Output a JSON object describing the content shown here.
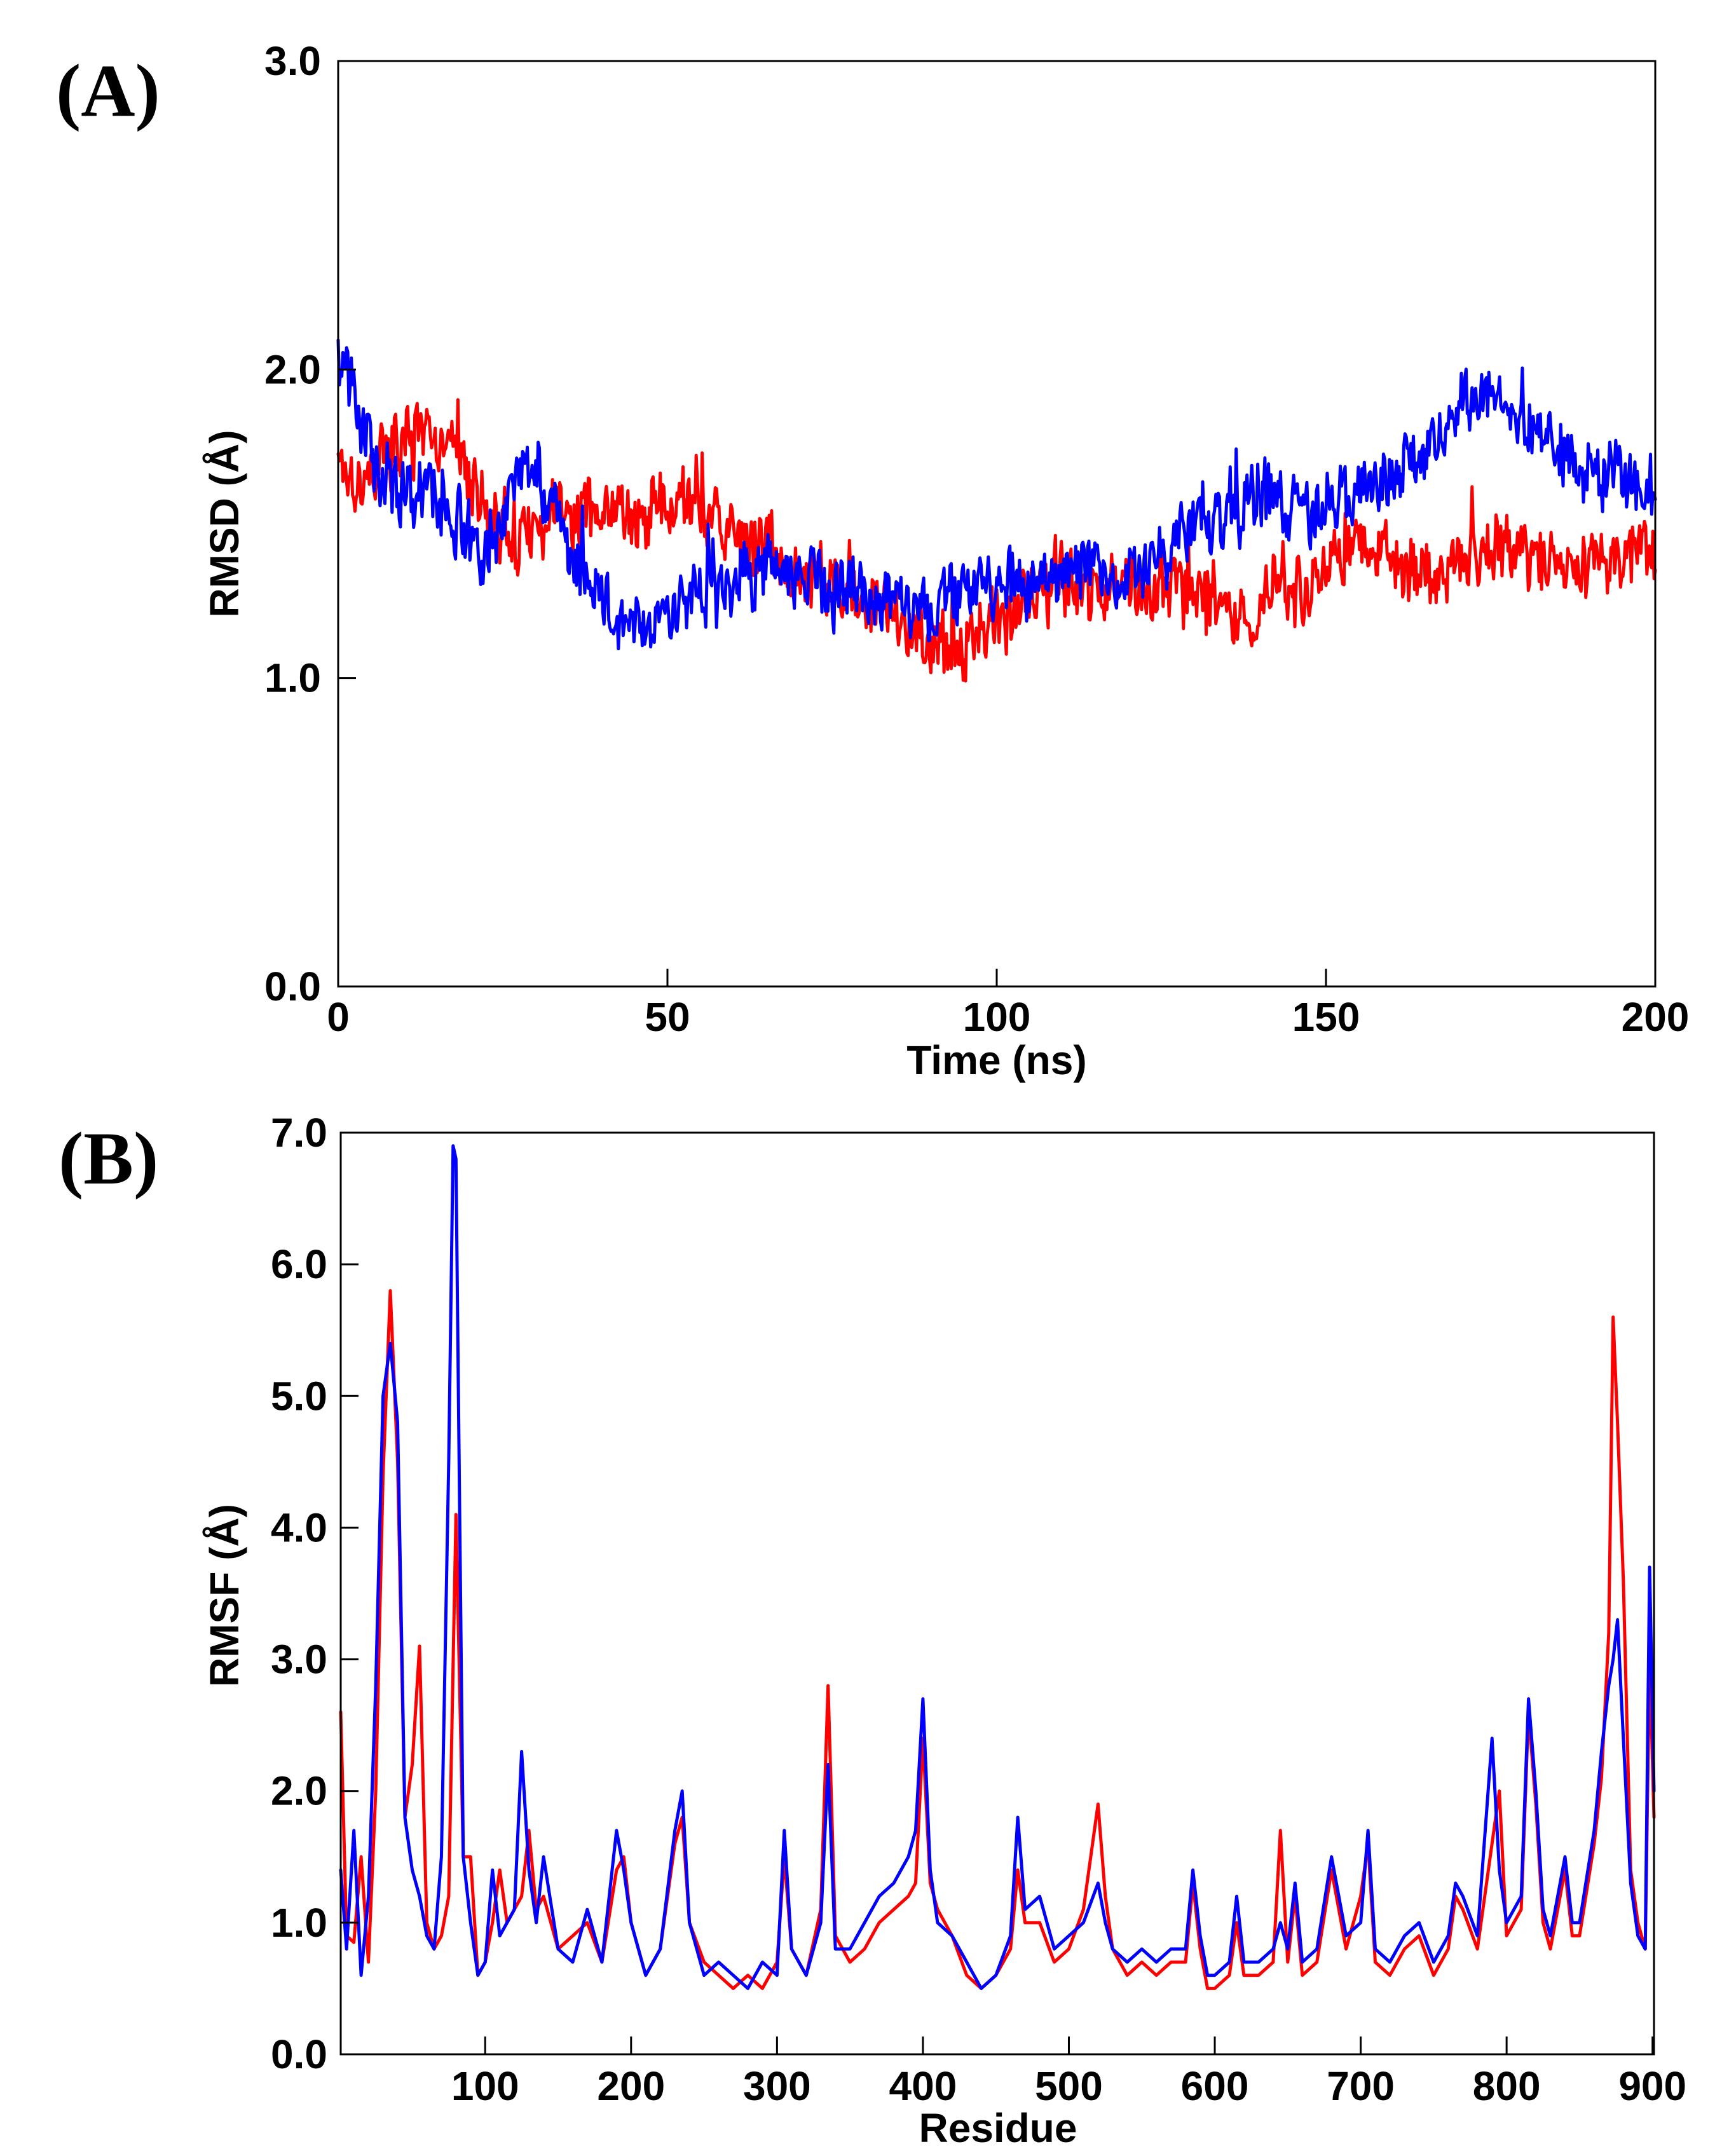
{
  "chart_data": [
    {
      "panel_label": "(A)",
      "type": "line",
      "title": "",
      "xlabel": "Time (ns)",
      "ylabel": "RMSD (Å)",
      "xlim": [
        0,
        200
      ],
      "ylim": [
        0,
        3
      ],
      "xticks": [
        0,
        50,
        100,
        150,
        200
      ],
      "xtick_labels": [
        "0",
        "50",
        "100",
        "150",
        "200"
      ],
      "yticks": [
        0,
        1,
        2,
        3
      ],
      "ytick_labels": [
        "0.0",
        "1.0",
        "2.0",
        "3.0"
      ],
      "grid": false,
      "noise_amplitude": 0.09,
      "series": [
        {
          "name": "red",
          "color": "#ff0000",
          "x": [
            0,
            1,
            3,
            6,
            10,
            14,
            18,
            22,
            26,
            30,
            34,
            38,
            42,
            46,
            50,
            54,
            58,
            62,
            66,
            70,
            74,
            78,
            82,
            86,
            90,
            94,
            98,
            102,
            106,
            110,
            114,
            118,
            122,
            126,
            130,
            134,
            138,
            142,
            146,
            150,
            154,
            158,
            162,
            166,
            170,
            174,
            178,
            182,
            186,
            190,
            194,
            198,
            200
          ],
          "values": [
            1.75,
            1.7,
            1.65,
            1.7,
            1.78,
            1.75,
            1.72,
            1.55,
            1.45,
            1.5,
            1.52,
            1.55,
            1.55,
            1.5,
            1.62,
            1.55,
            1.48,
            1.45,
            1.42,
            1.35,
            1.3,
            1.28,
            1.22,
            1.18,
            1.12,
            1.1,
            1.15,
            1.2,
            1.28,
            1.3,
            1.25,
            1.28,
            1.32,
            1.3,
            1.28,
            1.25,
            1.2,
            1.3,
            1.28,
            1.35,
            1.45,
            1.4,
            1.35,
            1.33,
            1.38,
            1.4,
            1.42,
            1.4,
            1.38,
            1.35,
            1.38,
            1.4,
            1.38
          ]
        },
        {
          "name": "blue",
          "color": "#0000ff",
          "x": [
            0,
            1,
            3,
            6,
            10,
            14,
            18,
            22,
            26,
            30,
            34,
            38,
            42,
            46,
            50,
            54,
            58,
            62,
            66,
            70,
            74,
            78,
            82,
            86,
            90,
            94,
            98,
            102,
            106,
            110,
            114,
            118,
            122,
            126,
            130,
            134,
            138,
            142,
            146,
            150,
            154,
            158,
            162,
            166,
            170,
            174,
            178,
            182,
            186,
            190,
            194,
            198,
            200
          ],
          "values": [
            2.1,
            2.0,
            1.85,
            1.7,
            1.62,
            1.58,
            1.5,
            1.4,
            1.65,
            1.68,
            1.45,
            1.3,
            1.2,
            1.22,
            1.2,
            1.28,
            1.33,
            1.32,
            1.35,
            1.35,
            1.3,
            1.28,
            1.25,
            1.25,
            1.2,
            1.28,
            1.3,
            1.32,
            1.3,
            1.35,
            1.38,
            1.3,
            1.35,
            1.42,
            1.5,
            1.52,
            1.55,
            1.62,
            1.55,
            1.55,
            1.6,
            1.62,
            1.68,
            1.75,
            1.88,
            1.92,
            1.8,
            1.85,
            1.75,
            1.68,
            1.65,
            1.6,
            1.62
          ]
        }
      ]
    },
    {
      "panel_label": "(B)",
      "type": "line",
      "title": "",
      "xlabel": "Residue",
      "ylabel": "RMSF (Å)",
      "xlim": [
        1,
        901
      ],
      "ylim": [
        0,
        7
      ],
      "xticks": [
        100,
        200,
        300,
        400,
        500,
        600,
        700,
        800,
        900
      ],
      "xtick_labels": [
        "100",
        "200",
        "300",
        "400",
        "500",
        "600",
        "700",
        "800",
        "900"
      ],
      "yticks": [
        0,
        1,
        2,
        3,
        4,
        5,
        6,
        7
      ],
      "ytick_labels": [
        "0.0",
        "1.0",
        "2.0",
        "3.0",
        "4.0",
        "5.0",
        "6.0",
        "7.0"
      ],
      "grid": false,
      "series": [
        {
          "name": "red",
          "color": "#ff0000",
          "x": [
            1,
            5,
            10,
            15,
            20,
            25,
            30,
            35,
            40,
            45,
            50,
            55,
            60,
            65,
            70,
            75,
            80,
            85,
            90,
            95,
            100,
            105,
            110,
            115,
            120,
            125,
            130,
            135,
            140,
            150,
            160,
            170,
            180,
            190,
            195,
            200,
            210,
            220,
            230,
            235,
            240,
            250,
            260,
            270,
            280,
            290,
            300,
            305,
            310,
            320,
            330,
            335,
            340,
            350,
            360,
            370,
            380,
            390,
            395,
            400,
            405,
            410,
            420,
            430,
            440,
            450,
            460,
            465,
            470,
            480,
            490,
            500,
            510,
            520,
            525,
            530,
            540,
            550,
            560,
            570,
            580,
            585,
            590,
            595,
            600,
            610,
            615,
            620,
            630,
            640,
            645,
            650,
            655,
            660,
            670,
            680,
            685,
            690,
            700,
            705,
            710,
            720,
            730,
            740,
            750,
            760,
            765,
            770,
            780,
            790,
            795,
            800,
            810,
            815,
            820,
            825,
            830,
            840,
            845,
            850,
            860,
            865,
            870,
            873,
            876,
            880,
            885,
            890,
            895,
            898,
            901
          ],
          "values": [
            2.6,
            0.9,
            0.85,
            1.5,
            0.7,
            2.0,
            4.4,
            5.8,
            4.5,
            1.8,
            2.2,
            3.1,
            1.0,
            0.8,
            0.9,
            1.2,
            4.1,
            1.5,
            1.5,
            0.6,
            0.7,
            1.0,
            1.4,
            1.0,
            1.1,
            1.2,
            1.7,
            1.1,
            1.2,
            0.8,
            0.9,
            1.0,
            0.7,
            1.4,
            1.5,
            1.0,
            0.6,
            0.8,
            1.6,
            1.8,
            1.0,
            0.7,
            0.6,
            0.5,
            0.6,
            0.5,
            0.7,
            1.5,
            0.8,
            0.6,
            1.1,
            2.8,
            0.9,
            0.7,
            0.8,
            1.0,
            1.1,
            1.2,
            1.3,
            2.4,
            1.3,
            1.1,
            0.9,
            0.6,
            0.5,
            0.6,
            0.8,
            1.4,
            1.0,
            1.0,
            0.7,
            0.8,
            1.1,
            1.9,
            1.2,
            0.8,
            0.6,
            0.7,
            0.6,
            0.7,
            0.7,
            1.3,
            0.8,
            0.5,
            0.5,
            0.6,
            1.0,
            0.6,
            0.6,
            0.7,
            1.7,
            0.7,
            1.2,
            0.6,
            0.7,
            1.4,
            1.1,
            0.8,
            1.2,
            1.6,
            0.7,
            0.6,
            0.8,
            0.9,
            0.6,
            0.8,
            1.2,
            1.1,
            0.8,
            1.6,
            2.0,
            0.9,
            1.1,
            2.6,
            1.9,
            1.0,
            0.8,
            1.4,
            0.9,
            0.9,
            1.6,
            2.1,
            3.2,
            5.6,
            4.8,
            3.6,
            1.4,
            1.0,
            0.8,
            3.0,
            1.8
          ]
        },
        {
          "name": "blue",
          "color": "#0000ff",
          "x": [
            1,
            5,
            10,
            15,
            20,
            25,
            30,
            35,
            40,
            45,
            50,
            55,
            60,
            65,
            70,
            75,
            78,
            80,
            85,
            90,
            95,
            100,
            105,
            110,
            115,
            120,
            125,
            130,
            135,
            140,
            150,
            160,
            170,
            180,
            190,
            195,
            200,
            210,
            220,
            230,
            235,
            240,
            250,
            260,
            270,
            280,
            290,
            300,
            305,
            310,
            320,
            330,
            335,
            340,
            350,
            360,
            370,
            380,
            390,
            395,
            400,
            405,
            410,
            420,
            430,
            440,
            450,
            460,
            465,
            470,
            480,
            490,
            500,
            510,
            520,
            525,
            530,
            540,
            550,
            560,
            570,
            580,
            585,
            590,
            595,
            600,
            610,
            615,
            620,
            630,
            640,
            645,
            650,
            655,
            660,
            670,
            680,
            685,
            690,
            700,
            705,
            710,
            720,
            730,
            740,
            750,
            760,
            765,
            770,
            780,
            790,
            795,
            800,
            810,
            815,
            820,
            825,
            830,
            840,
            845,
            850,
            860,
            865,
            870,
            873,
            876,
            880,
            885,
            890,
            895,
            898,
            901
          ],
          "values": [
            1.4,
            0.8,
            1.7,
            0.6,
            1.2,
            2.8,
            5.0,
            5.4,
            4.8,
            1.8,
            1.4,
            1.2,
            0.9,
            0.8,
            1.5,
            4.5,
            6.9,
            6.8,
            1.5,
            1.0,
            0.6,
            0.7,
            1.4,
            0.9,
            1.0,
            1.1,
            2.3,
            1.4,
            1.0,
            1.5,
            0.8,
            0.7,
            1.1,
            0.7,
            1.7,
            1.4,
            1.0,
            0.6,
            0.8,
            1.7,
            2.0,
            1.0,
            0.6,
            0.7,
            0.6,
            0.5,
            0.7,
            0.6,
            1.7,
            0.8,
            0.6,
            1.0,
            2.2,
            0.8,
            0.8,
            1.0,
            1.2,
            1.3,
            1.5,
            1.7,
            2.7,
            1.4,
            1.0,
            0.9,
            0.7,
            0.5,
            0.6,
            0.9,
            1.8,
            1.1,
            1.2,
            0.8,
            0.9,
            1.0,
            1.3,
            1.0,
            0.8,
            0.7,
            0.8,
            0.7,
            0.8,
            0.8,
            1.4,
            0.9,
            0.6,
            0.6,
            0.7,
            1.2,
            0.7,
            0.7,
            0.8,
            1.0,
            0.8,
            1.3,
            0.7,
            0.8,
            1.5,
            1.2,
            0.9,
            1.0,
            1.7,
            0.8,
            0.7,
            0.9,
            1.0,
            0.7,
            0.9,
            1.3,
            1.2,
            0.9,
            2.4,
            1.4,
            1.0,
            1.2,
            2.7,
            2.0,
            1.1,
            0.9,
            1.5,
            1.0,
            1.0,
            1.7,
            2.3,
            2.8,
            3.0,
            3.3,
            2.4,
            1.3,
            0.9,
            0.8,
            3.7,
            2.0
          ]
        }
      ]
    }
  ]
}
